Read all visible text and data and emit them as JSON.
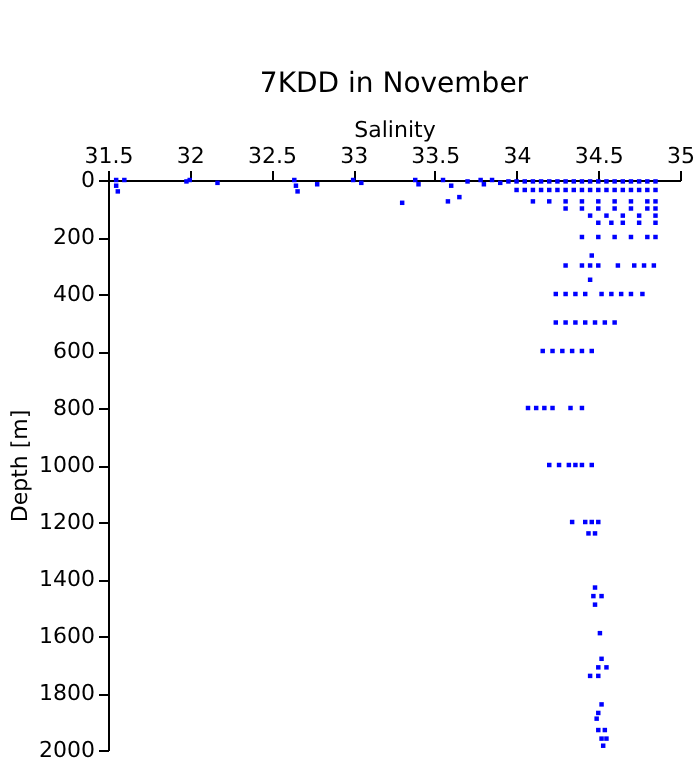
{
  "chart_data": {
    "type": "scatter",
    "title": "7KDD in November",
    "xlabel": "Salinity",
    "ylabel": "Depth [m]",
    "xlim": [
      31.5,
      35
    ],
    "xticks": [
      31.5,
      32,
      32.5,
      33,
      33.5,
      34,
      34.5,
      35
    ],
    "ylim": [
      2000,
      0
    ],
    "yticks": [
      0,
      200,
      400,
      600,
      800,
      1000,
      1200,
      1400,
      1600,
      1800,
      2000
    ],
    "marker": "square",
    "series": [
      {
        "color": "#0000ff",
        "x": [
          31.55,
          31.55,
          31.56,
          31.6,
          31.98,
          32.0,
          32.17,
          32.64,
          32.65,
          32.66,
          32.78,
          33.0,
          33.05,
          33.3,
          33.38,
          33.4,
          33.55,
          33.6,
          33.58,
          33.65,
          33.7,
          33.78,
          33.8,
          33.85,
          33.9,
          33.95,
          34.0,
          34.05,
          34.1,
          34.15,
          34.2,
          34.25,
          34.3,
          34.35,
          34.4,
          34.45,
          34.5,
          34.55,
          34.6,
          34.65,
          34.7,
          34.75,
          34.8,
          34.85,
          34.0,
          34.05,
          34.1,
          34.15,
          34.2,
          34.25,
          34.3,
          34.35,
          34.4,
          34.45,
          34.5,
          34.55,
          34.6,
          34.65,
          34.7,
          34.75,
          34.8,
          34.85,
          34.1,
          34.2,
          34.3,
          34.4,
          34.5,
          34.6,
          34.7,
          34.8,
          34.85,
          34.3,
          34.4,
          34.5,
          34.6,
          34.7,
          34.8,
          34.85,
          34.45,
          34.55,
          34.65,
          34.75,
          34.85,
          34.5,
          34.58,
          34.65,
          34.75,
          34.85,
          34.4,
          34.5,
          34.6,
          34.7,
          34.8,
          34.85,
          34.46,
          34.3,
          34.4,
          34.45,
          34.5,
          34.62,
          34.72,
          34.78,
          34.84,
          34.45,
          34.24,
          34.3,
          34.36,
          34.42,
          34.52,
          34.58,
          34.64,
          34.7,
          34.77,
          34.24,
          34.3,
          34.36,
          34.42,
          34.48,
          34.54,
          34.6,
          34.16,
          34.22,
          34.28,
          34.34,
          34.4,
          34.46,
          34.07,
          34.12,
          34.17,
          34.22,
          34.33,
          34.4,
          34.2,
          34.26,
          34.32,
          34.36,
          34.4,
          34.46,
          34.34,
          34.42,
          34.46,
          34.5,
          34.44,
          34.48,
          34.48,
          34.47,
          34.52,
          34.48,
          34.51,
          34.52,
          34.5,
          34.55,
          34.45,
          34.5,
          34.52,
          34.5,
          34.49,
          34.5,
          34.54,
          34.52,
          34.55,
          34.53
        ],
        "values": [
          0,
          20,
          40,
          0,
          5,
          0,
          10,
          0,
          20,
          40,
          15,
          0,
          10,
          80,
          0,
          15,
          0,
          20,
          75,
          60,
          5,
          0,
          15,
          0,
          10,
          5,
          5,
          5,
          5,
          5,
          5,
          5,
          5,
          5,
          5,
          5,
          5,
          5,
          5,
          5,
          5,
          5,
          5,
          5,
          35,
          35,
          35,
          35,
          35,
          35,
          35,
          35,
          35,
          35,
          35,
          35,
          35,
          35,
          35,
          35,
          35,
          35,
          75,
          75,
          75,
          75,
          75,
          75,
          75,
          75,
          75,
          100,
          100,
          100,
          100,
          100,
          100,
          100,
          125,
          125,
          125,
          125,
          125,
          150,
          150,
          150,
          150,
          150,
          200,
          200,
          200,
          200,
          200,
          200,
          265,
          300,
          300,
          300,
          300,
          300,
          300,
          300,
          300,
          350,
          400,
          400,
          400,
          400,
          400,
          400,
          400,
          400,
          400,
          500,
          500,
          500,
          500,
          500,
          500,
          500,
          600,
          600,
          600,
          600,
          600,
          600,
          800,
          800,
          800,
          800,
          800,
          800,
          1000,
          1000,
          1000,
          1000,
          1000,
          1000,
          1200,
          1200,
          1200,
          1200,
          1240,
          1240,
          1430,
          1460,
          1460,
          1490,
          1590,
          1680,
          1710,
          1710,
          1740,
          1740,
          1840,
          1870,
          1890,
          1930,
          1930,
          1960,
          1960,
          1985
        ]
      }
    ]
  }
}
